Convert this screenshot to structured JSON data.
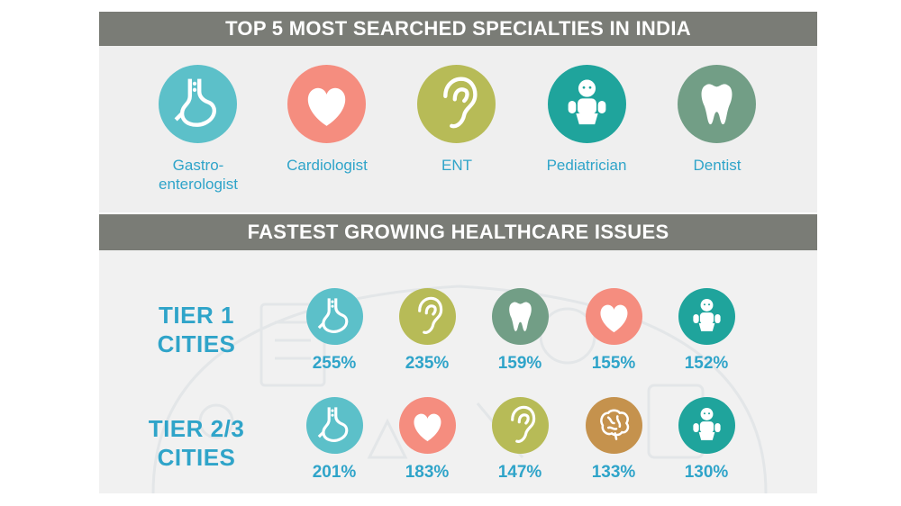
{
  "section1": {
    "title": "TOP 5 MOST SEARCHED SPECIALTIES IN INDIA",
    "items": [
      {
        "label_line1": "Gastro-",
        "label_line2": "enterologist",
        "icon": "stomach-icon",
        "color": "#5cc0c9"
      },
      {
        "label_line1": "Cardiologist",
        "label_line2": "",
        "icon": "heart-icon",
        "color": "#f58d7f"
      },
      {
        "label_line1": "ENT",
        "label_line2": "",
        "icon": "ear-icon",
        "color": "#b7bb57"
      },
      {
        "label_line1": "Pediatrician",
        "label_line2": "",
        "icon": "baby-icon",
        "color": "#1fa49c"
      },
      {
        "label_line1": "Dentist",
        "label_line2": "",
        "icon": "tooth-icon",
        "color": "#729e86"
      }
    ]
  },
  "section2": {
    "title": "FASTEST GROWING HEALTHCARE ISSUES",
    "tiers": [
      {
        "label_line1": "TIER 1",
        "label_line2": "CITIES",
        "items": [
          {
            "icon": "stomach-icon",
            "color": "#5cc0c9",
            "percent": "255%"
          },
          {
            "icon": "ear-icon",
            "color": "#b7bb57",
            "percent": "235%"
          },
          {
            "icon": "tooth-icon",
            "color": "#729e86",
            "percent": "159%"
          },
          {
            "icon": "heart-icon",
            "color": "#f58d7f",
            "percent": "155%"
          },
          {
            "icon": "baby-icon",
            "color": "#1fa49c",
            "percent": "152%"
          }
        ]
      },
      {
        "label_line1": "TIER 2/3",
        "label_line2": "CITIES",
        "items": [
          {
            "icon": "stomach-icon",
            "color": "#5cc0c9",
            "percent": "201%"
          },
          {
            "icon": "heart-icon",
            "color": "#f58d7f",
            "percent": "183%"
          },
          {
            "icon": "ear-icon",
            "color": "#b7bb57",
            "percent": "147%"
          },
          {
            "icon": "brain-icon",
            "color": "#c5924d",
            "percent": "133%"
          },
          {
            "icon": "baby-icon",
            "color": "#1fa49c",
            "percent": "130%"
          }
        ]
      }
    ]
  },
  "colors": {
    "banner": "#7a7c76",
    "text_accent": "#2fa4c9",
    "panel_bg": "#efefef"
  }
}
